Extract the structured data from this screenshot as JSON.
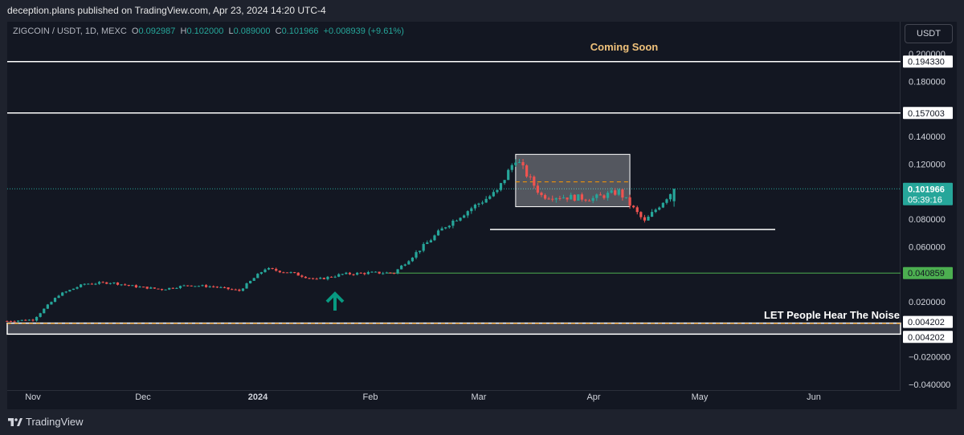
{
  "header": {
    "publisher_text": "deception.plans published on TradingView.com, Apr 23, 2024 14:20 UTC-4"
  },
  "legend": {
    "symbol": "ZIGCOIN / USDT, 1D, MEXC",
    "open_label": "O",
    "open": "0.092987",
    "high_label": "H",
    "high": "0.102000",
    "low_label": "L",
    "low": "0.089000",
    "close_label": "C",
    "close": "0.101966",
    "change": "+0.008939 (+9.61%)"
  },
  "currency_button": "USDT",
  "annotations": {
    "coming_soon": "Coming Soon",
    "noise_text": "LET People Hear The Noise"
  },
  "price_axis": {
    "ticks": [
      "0.200000",
      "0.180000",
      "0.140000",
      "0.120000",
      "0.080000",
      "0.060000",
      "0.020000",
      "−0.020000",
      "−0.040000"
    ],
    "labels": [
      {
        "value": "0.194330",
        "style": "white"
      },
      {
        "value": "0.157003",
        "style": "white"
      },
      {
        "value": "0.101966",
        "countdown": "05:39:16",
        "style": "teal"
      },
      {
        "value": "0.040859",
        "style": "green"
      },
      {
        "value": "0.004202",
        "style": "white"
      },
      {
        "value": "0.004202",
        "style": "white"
      }
    ]
  },
  "time_axis": {
    "labels": [
      "Nov",
      "Dec",
      "2024",
      "Feb",
      "Mar",
      "Apr",
      "May",
      "Jun"
    ]
  },
  "colors": {
    "up": "#26a69a",
    "down": "#ef5350",
    "background": "#131722",
    "coming_soon": "#f0c27b",
    "support_line": "#4caf50",
    "arrow": "#089981",
    "dashed_orange": "#ff9800"
  },
  "icons": {
    "arrow": "up-arrow-icon",
    "brand": "tradingview-logo-icon"
  },
  "brand_name": "TradingView",
  "chart_data": {
    "type": "candlestick",
    "symbol": "ZIGCOIN / USDT",
    "interval": "1D",
    "exchange": "MEXC",
    "ylim": [
      -0.04,
      0.21
    ],
    "horizontal_levels": [
      0.19433,
      0.157003,
      0.101966,
      0.040859,
      0.004202
    ],
    "close_series": [
      {
        "date": "2023-10-25",
        "close": 0.006
      },
      {
        "date": "2023-11-01",
        "close": 0.007
      },
      {
        "date": "2023-11-08",
        "close": 0.025
      },
      {
        "date": "2023-11-15",
        "close": 0.033
      },
      {
        "date": "2023-11-22",
        "close": 0.034
      },
      {
        "date": "2023-11-29",
        "close": 0.031
      },
      {
        "date": "2023-12-06",
        "close": 0.029
      },
      {
        "date": "2023-12-13",
        "close": 0.032
      },
      {
        "date": "2023-12-20",
        "close": 0.031
      },
      {
        "date": "2023-12-27",
        "close": 0.028
      },
      {
        "date": "2024-01-03",
        "close": 0.044
      },
      {
        "date": "2024-01-10",
        "close": 0.041
      },
      {
        "date": "2024-01-17",
        "close": 0.036
      },
      {
        "date": "2024-01-24",
        "close": 0.04
      },
      {
        "date": "2024-01-31",
        "close": 0.041
      },
      {
        "date": "2024-02-07",
        "close": 0.041
      },
      {
        "date": "2024-02-14",
        "close": 0.058
      },
      {
        "date": "2024-02-21",
        "close": 0.075
      },
      {
        "date": "2024-02-28",
        "close": 0.088
      },
      {
        "date": "2024-03-06",
        "close": 0.1
      },
      {
        "date": "2024-03-11",
        "close": 0.124
      },
      {
        "date": "2024-03-18",
        "close": 0.097
      },
      {
        "date": "2024-03-25",
        "close": 0.096
      },
      {
        "date": "2024-04-01",
        "close": 0.095
      },
      {
        "date": "2024-04-08",
        "close": 0.1
      },
      {
        "date": "2024-04-15",
        "close": 0.078
      },
      {
        "date": "2024-04-23",
        "close": 0.101966
      }
    ]
  }
}
